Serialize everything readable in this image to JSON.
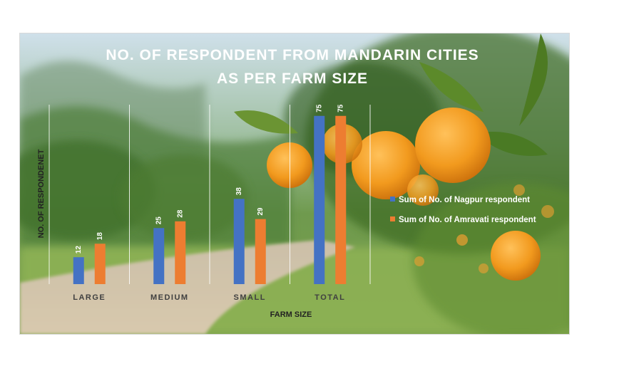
{
  "chart_data": {
    "type": "bar",
    "title": [
      "NO. OF RESPONDENT FROM MANDARIN CITIES",
      "AS PER FARM SIZE"
    ],
    "xlabel": "FARM SIZE",
    "ylabel": "NO. OF RESPONDENET",
    "categories": [
      "LARGE",
      "MEDIUM",
      "SMALL",
      "TOTAL"
    ],
    "series": [
      {
        "name": "Sum of No. of Nagpur respondent",
        "values": [
          12,
          25,
          38,
          75
        ],
        "color": "#4472C4"
      },
      {
        "name": "Sum of No. of Amravati respondent",
        "values": [
          18,
          28,
          29,
          75
        ],
        "color": "#ED7D31"
      }
    ],
    "ylim": [
      0,
      80
    ],
    "grid": false,
    "category_separators": true,
    "legend": "right",
    "data_labels": true,
    "background": "photo of mandarin orange orchard"
  }
}
